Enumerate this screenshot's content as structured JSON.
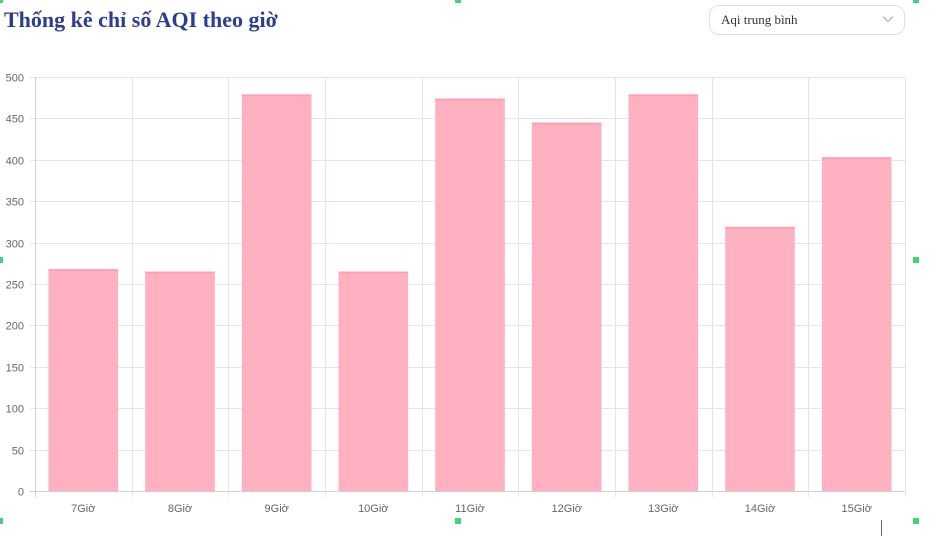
{
  "header": {
    "title": "Thống kê chỉ số AQI theo giờ",
    "dropdown": {
      "selected": "Aqi trung bình",
      "icon": "chevron-down-icon"
    }
  },
  "chart_data": {
    "type": "bar",
    "categories": [
      "7Giờ",
      "8Giờ",
      "9Giờ",
      "10Giờ",
      "11Giờ",
      "12Giờ",
      "13Giờ",
      "14Giờ",
      "15Giờ"
    ],
    "series": [
      {
        "values": [
          268,
          265,
          479,
          265,
          474,
          445,
          479,
          319,
          403
        ],
        "color": "#ffb1c1"
      }
    ],
    "yticks": [
      "0",
      "50",
      "100",
      "150",
      "200",
      "250",
      "300",
      "350",
      "400",
      "450",
      "500"
    ],
    "ylim": [
      0,
      500
    ],
    "grid": true,
    "legend": "none"
  },
  "colors": {
    "title": "#2c3e8f",
    "bar_fill": "#ffb1c1",
    "bar_border": "#ffa0b4",
    "grid": "#e5e5e5",
    "selection_handle": "#3dd57a"
  }
}
